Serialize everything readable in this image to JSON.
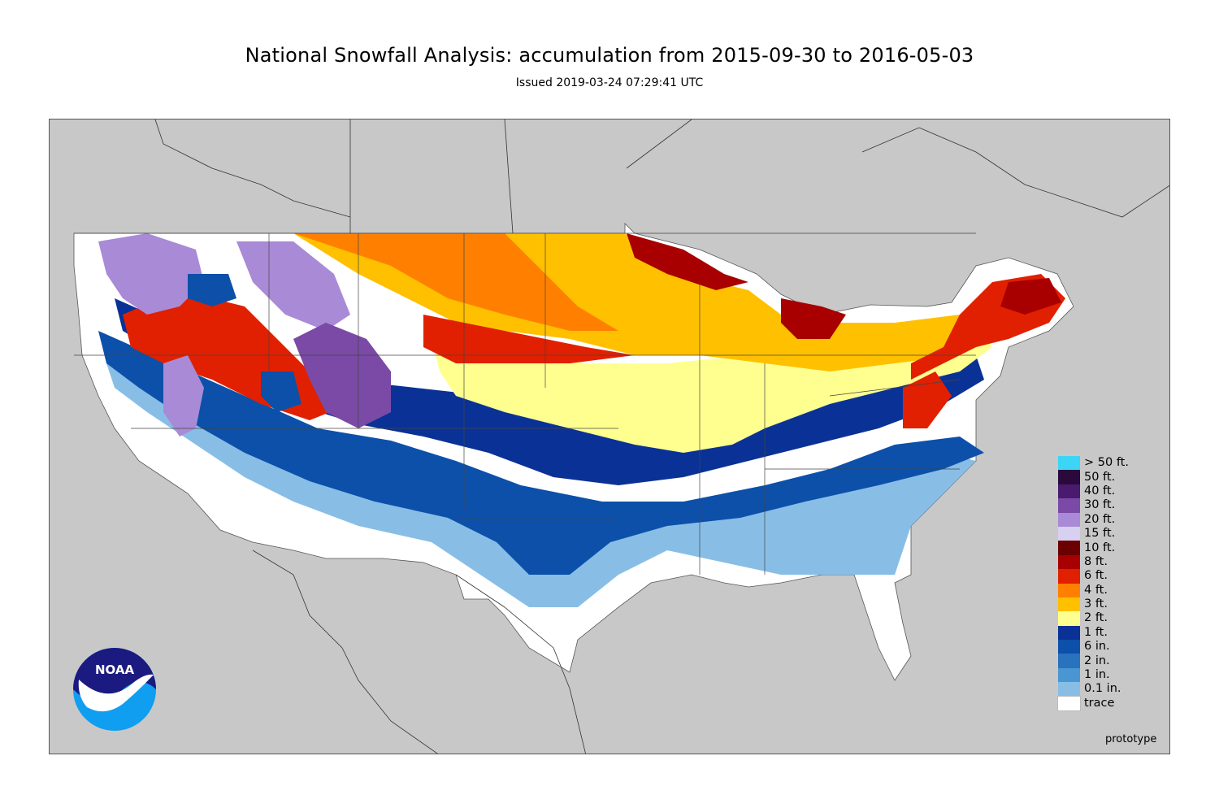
{
  "header": {
    "title": "National Snowfall Analysis: accumulation from 2015-09-30 to 2016-05-03",
    "issued": "Issued 2019-03-24 07:29:41 UTC"
  },
  "footer": {
    "status": "prototype"
  },
  "logo": {
    "text": "NOAA"
  },
  "colors": {
    "land": "#c8c8c8",
    "water": "#c8c8c8",
    "border": "#444444"
  },
  "legend": {
    "items": [
      {
        "label": "> 50 ft.",
        "color": "#3cd5f5"
      },
      {
        "label": "50 ft.",
        "color": "#2a0a3c"
      },
      {
        "label": "40 ft.",
        "color": "#4a1a6e"
      },
      {
        "label": "30 ft.",
        "color": "#7a4aa6"
      },
      {
        "label": "20 ft.",
        "color": "#a98ad6"
      },
      {
        "label": "15 ft.",
        "color": "#d8d0f0"
      },
      {
        "label": "10 ft.",
        "color": "#6a0000"
      },
      {
        "label": "8 ft.",
        "color": "#a80000"
      },
      {
        "label": "6 ft.",
        "color": "#e02000"
      },
      {
        "label": "4 ft.",
        "color": "#ff8000"
      },
      {
        "label": "3 ft.",
        "color": "#ffc000"
      },
      {
        "label": "2 ft.",
        "color": "#ffff90"
      },
      {
        "label": "1 ft.",
        "color": "#0a3296"
      },
      {
        "label": "6 in.",
        "color": "#0c50aa"
      },
      {
        "label": "2 in.",
        "color": "#2872be"
      },
      {
        "label": "1 in.",
        "color": "#4a96d2"
      },
      {
        "label": "0.1 in.",
        "color": "#88bee6"
      },
      {
        "label": "trace",
        "color": "#ffffff"
      }
    ]
  }
}
